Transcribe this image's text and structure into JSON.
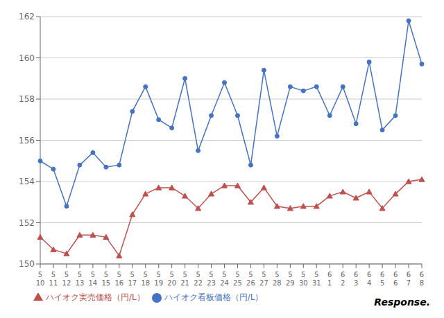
{
  "chart_data": {
    "type": "line",
    "categories": [
      "5\n10",
      "5\n11",
      "5\n12",
      "5\n13",
      "5\n14",
      "5\n15",
      "5\n16",
      "5\n17",
      "5\n18",
      "5\n19",
      "5\n20",
      "5\n21",
      "5\n22",
      "5\n23",
      "5\n24",
      "5\n25",
      "5\n26",
      "5\n27",
      "5\n28",
      "5\n29",
      "5\n30",
      "5\n31",
      "6\n1",
      "6\n2",
      "6\n3",
      "6\n4",
      "6\n5",
      "6\n6",
      "6\n7",
      "6\n8"
    ],
    "series": [
      {
        "name": "ハイオク看板価格（円/L）",
        "color": "#4472C4",
        "marker": "circle",
        "values": [
          155.0,
          154.6,
          152.8,
          154.8,
          155.4,
          154.7,
          154.8,
          157.4,
          158.6,
          157.0,
          156.6,
          159.0,
          155.5,
          157.2,
          158.8,
          157.2,
          154.8,
          159.4,
          156.2,
          158.6,
          158.4,
          158.6,
          157.2,
          158.6,
          156.8,
          159.8,
          156.5,
          157.2,
          161.8,
          159.7
        ]
      },
      {
        "name": "ハイオク実売価格（円/L）",
        "color": "#C0504D",
        "marker": "triangle",
        "values": [
          151.3,
          150.7,
          150.5,
          151.4,
          151.4,
          151.3,
          150.4,
          152.4,
          153.4,
          153.7,
          153.7,
          153.3,
          152.7,
          153.4,
          153.8,
          153.8,
          153.0,
          153.7,
          152.8,
          152.7,
          152.8,
          152.8,
          153.3,
          153.5,
          153.2,
          153.5,
          152.7,
          153.4,
          154.0,
          154.1
        ]
      }
    ],
    "ylim": [
      150,
      162
    ],
    "yticks": [
      150,
      152,
      154,
      156,
      158,
      160,
      162
    ],
    "grid": true,
    "legend": "lower left",
    "annotations": [
      "Response."
    ]
  }
}
